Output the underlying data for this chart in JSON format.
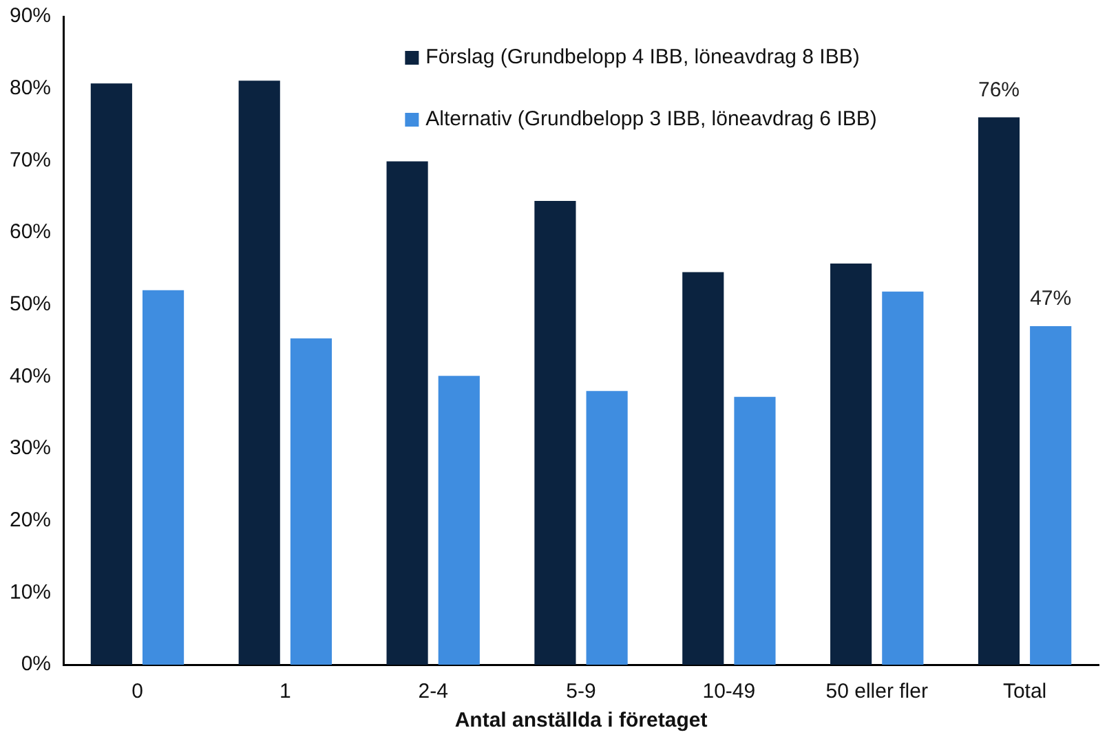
{
  "chart_data": {
    "type": "bar",
    "xlabel": "Antal anställda i företaget",
    "categories": [
      "0",
      "1",
      "2-4",
      "5-9",
      "10-49",
      "50 eller fler",
      "Total"
    ],
    "series": [
      {
        "name": "Förslag (Grundbelopp 4 IBB, löneavdrag 8 IBB)",
        "color": "#0b2340",
        "values": [
          80.7,
          81.1,
          69.9,
          64.4,
          54.5,
          55.7,
          76
        ],
        "value_labels": [
          null,
          null,
          null,
          null,
          null,
          null,
          "76%"
        ]
      },
      {
        "name": "Alternativ (Grundbelopp 3 IBB, löneavdrag 6 IBB)",
        "color": "#3f8de0",
        "values": [
          52.0,
          45.3,
          40.1,
          38.0,
          37.2,
          51.8,
          47
        ],
        "value_labels": [
          null,
          null,
          null,
          null,
          null,
          null,
          "47%"
        ]
      }
    ],
    "ylim": [
      0,
      90
    ],
    "yticks": [
      {
        "value": 0,
        "label": "0%"
      },
      {
        "value": 10,
        "label": "10%"
      },
      {
        "value": 20,
        "label": "20%"
      },
      {
        "value": 30,
        "label": "30%"
      },
      {
        "value": 40,
        "label": "40%"
      },
      {
        "value": 50,
        "label": "50%"
      },
      {
        "value": 60,
        "label": "60%"
      },
      {
        "value": 70,
        "label": "70%"
      },
      {
        "value": 80,
        "label": "80%"
      },
      {
        "value": 90,
        "label": "90%"
      }
    ],
    "grid": false,
    "legend": "top"
  }
}
